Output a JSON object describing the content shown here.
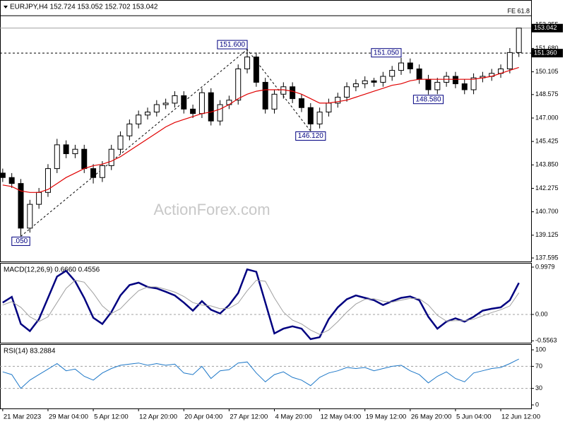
{
  "chart_data": [
    {
      "type": "candlestick",
      "title": "EURJPY,H4  152.724 153.052 152.702 153.042",
      "watermark": "ActionForex.com",
      "xlim": [
        -0.3,
        58.35
      ],
      "ylim": [
        137.36,
        154.93
      ],
      "yticks": [
        153.255,
        {
          "value": 151.68,
          "label": "151.680"
        },
        150.105,
        148.575,
        {
          "value": 147,
          "label": "147.000"
        },
        145.425,
        {
          "value": 143.85,
          "label": "143.850"
        },
        142.275,
        {
          "value": 140.7,
          "label": "140.700"
        },
        139.125,
        137.595
      ],
      "candle_color": "#000000",
      "open": [
        143.3,
        143.0,
        142.6,
        139.6,
        141.2,
        142.0,
        143.6,
        145.2,
        144.6,
        144.9,
        143.6,
        143.0,
        143.8,
        144.9,
        145.8,
        146.6,
        147.2,
        147.4,
        147.9,
        148.0,
        148.5,
        147.6,
        147.3,
        148.7,
        146.8,
        147.9,
        148.2,
        150.3,
        151.1,
        149.4,
        147.6,
        148.6,
        149.1,
        148.3,
        147.7,
        146.6,
        147.4,
        148.0,
        148.4,
        149.1,
        149.3,
        149.5,
        149.4,
        149.8,
        150.2,
        150.7,
        150.3,
        149.6,
        148.9,
        149.4,
        149.8,
        149.3,
        148.9,
        149.7,
        149.8,
        150.0,
        150.3,
        151.4
      ],
      "high": [
        143.6,
        143.3,
        142.9,
        141.5,
        142.3,
        143.9,
        145.6,
        145.5,
        145.2,
        145.2,
        143.9,
        144.1,
        145.2,
        146.1,
        146.9,
        147.5,
        147.7,
        148.2,
        148.3,
        148.8,
        148.8,
        147.9,
        149.0,
        149.0,
        148.2,
        148.5,
        150.6,
        151.6,
        151.4,
        149.7,
        148.9,
        149.4,
        149.4,
        148.6,
        148.0,
        147.7,
        148.3,
        148.7,
        149.4,
        149.6,
        149.8,
        149.7,
        150.1,
        150.5,
        151.05,
        151.0,
        150.6,
        149.9,
        149.7,
        150.1,
        150.1,
        149.6,
        150.0,
        150.1,
        150.3,
        150.6,
        151.7,
        153.05
      ],
      "low": [
        142.7,
        142.3,
        139.05,
        139.3,
        140.9,
        141.7,
        143.3,
        144.3,
        144.3,
        143.3,
        142.6,
        142.7,
        143.5,
        144.6,
        145.5,
        146.3,
        146.9,
        147.1,
        147.6,
        147.7,
        147.3,
        147.0,
        147.0,
        146.5,
        146.5,
        147.6,
        147.9,
        150.0,
        149.1,
        147.3,
        147.3,
        148.3,
        148.0,
        147.4,
        146.12,
        146.3,
        147.1,
        147.7,
        148.1,
        148.8,
        149.0,
        149.1,
        149.1,
        149.5,
        149.9,
        150.0,
        149.3,
        148.58,
        148.6,
        149.1,
        149.0,
        148.6,
        148.6,
        149.4,
        149.5,
        149.7,
        150.0,
        151.1
      ],
      "close": [
        143.0,
        142.6,
        139.6,
        141.2,
        142.0,
        143.6,
        145.2,
        144.6,
        144.9,
        143.6,
        143.0,
        143.8,
        144.9,
        145.8,
        146.6,
        147.2,
        147.4,
        147.9,
        148.0,
        148.5,
        147.6,
        147.3,
        148.7,
        146.8,
        147.9,
        148.2,
        150.3,
        151.1,
        149.4,
        147.6,
        148.6,
        149.1,
        148.3,
        147.7,
        146.6,
        147.4,
        148.0,
        148.4,
        149.1,
        149.3,
        149.5,
        149.4,
        149.8,
        150.2,
        150.7,
        150.3,
        149.6,
        148.9,
        149.4,
        149.8,
        149.3,
        148.9,
        149.7,
        149.8,
        150.0,
        150.3,
        151.4,
        153.04
      ],
      "ma": {
        "color": "#e00000",
        "values": [
          142.5,
          142.4,
          142.1,
          142.0,
          142.0,
          142.2,
          142.6,
          143.0,
          143.3,
          143.6,
          143.8,
          143.9,
          144.1,
          144.4,
          144.8,
          145.2,
          145.6,
          146.0,
          146.4,
          146.7,
          146.9,
          147.1,
          147.3,
          147.4,
          147.6,
          147.9,
          148.3,
          148.6,
          148.8,
          148.9,
          148.9,
          148.9,
          148.8,
          148.6,
          148.3,
          148.0,
          148.0,
          148.1,
          148.2,
          148.4,
          148.6,
          148.8,
          149.0,
          149.2,
          149.3,
          149.5,
          149.6,
          149.6,
          149.6,
          149.6,
          149.6,
          149.6,
          149.6,
          149.7,
          149.8,
          150.0,
          150.2,
          150.4
        ]
      },
      "annotations": [
        {
          "index": 2,
          "value": 139.05,
          "label": ".050"
        },
        {
          "index": 27,
          "value": 151.6,
          "label": "151.600"
        },
        {
          "index": 34,
          "value": 146.12,
          "label": "146.120"
        },
        {
          "index": 44,
          "value": 151.05,
          "label": "151.050"
        },
        {
          "index": 47,
          "value": 148.58,
          "label": "148.580"
        }
      ],
      "hlines": [
        {
          "value": 153.876,
          "label": "FE 61.8",
          "color": "#000000",
          "style": "solid",
          "tag": false
        },
        {
          "value": 153.042,
          "label": "153.042",
          "color": "#a0a0a0",
          "style": "solid",
          "tag": true
        },
        {
          "value": 151.36,
          "label": "151.360",
          "color": "#000000",
          "style": "dashed",
          "tag": true
        }
      ]
    },
    {
      "type": "line",
      "title": "MACD(12,26,9) 0.6660 0.4556",
      "xlim": [
        -0.3,
        58.35
      ],
      "ylim": [
        -0.596,
        1.087
      ],
      "yticks": [
        0.9979,
        {
          "value": 0,
          "label": "0.00"
        },
        -0.5563
      ],
      "dashed_levels": [
        0
      ],
      "series": [
        {
          "color": "#000080",
          "width": 2.5,
          "values": [
            0.25,
            0.37,
            -0.2,
            -0.35,
            -0.1,
            0.35,
            0.8,
            0.92,
            0.7,
            0.35,
            -0.07,
            -0.2,
            0.05,
            0.4,
            0.62,
            0.67,
            0.58,
            0.55,
            0.48,
            0.4,
            0.25,
            0.08,
            0.28,
            0.1,
            0.02,
            0.2,
            0.45,
            0.95,
            0.9,
            0.25,
            -0.4,
            -0.3,
            -0.25,
            -0.3,
            -0.52,
            -0.48,
            -0.1,
            0.15,
            0.32,
            0.4,
            0.35,
            0.3,
            0.2,
            0.28,
            0.35,
            0.38,
            0.3,
            -0.05,
            -0.3,
            -0.15,
            -0.08,
            -0.15,
            -0.05,
            0.08,
            0.12,
            0.15,
            0.3,
            0.666
          ]
        },
        {
          "color": "#a0a0a0",
          "width": 1,
          "values": [
            0.2,
            0.27,
            0.15,
            -0.05,
            -0.15,
            -0.05,
            0.25,
            0.55,
            0.72,
            0.68,
            0.45,
            0.18,
            0.02,
            0.12,
            0.32,
            0.5,
            0.58,
            0.58,
            0.53,
            0.47,
            0.38,
            0.25,
            0.2,
            0.18,
            0.12,
            0.13,
            0.24,
            0.5,
            0.72,
            0.7,
            0.35,
            0.05,
            -0.12,
            -0.2,
            -0.33,
            -0.42,
            -0.33,
            -0.15,
            0.05,
            0.22,
            0.32,
            0.33,
            0.28,
            0.26,
            0.3,
            0.34,
            0.33,
            0.2,
            -0.02,
            -0.14,
            -0.13,
            -0.13,
            -0.1,
            -0.03,
            0.04,
            0.1,
            0.18,
            0.4556
          ]
        }
      ]
    },
    {
      "type": "line",
      "title": "RSI(14) 83.2884",
      "xlim": [
        -0.3,
        58.35
      ],
      "ylim": [
        -6.4,
        110.3
      ],
      "yticks": [
        100,
        70,
        30,
        0
      ],
      "dashed_levels": [
        70,
        30
      ],
      "xticks": [
        {
          "value": 0,
          "label": "21 Mar 2023"
        },
        {
          "value": 5,
          "label": "29 Mar 04:00"
        },
        {
          "value": 10,
          "label": "5 Apr 12:00"
        },
        {
          "value": 15,
          "label": "12 Apr 20:00"
        },
        {
          "value": 20,
          "label": "20 Apr 04:00"
        },
        {
          "value": 25,
          "label": "27 Apr 12:00"
        },
        {
          "value": 30,
          "label": "4 May 20:00"
        },
        {
          "value": 35,
          "label": "12 May 04:00"
        },
        {
          "value": 40,
          "label": "19 May 12:00"
        },
        {
          "value": 45,
          "label": "26 May 20:00"
        },
        {
          "value": 50,
          "label": "5 Jun 04:00"
        },
        {
          "value": 55,
          "label": "12 Jun 12:00"
        }
      ],
      "series": [
        {
          "color": "#1e78c8",
          "width": 1,
          "values": [
            60,
            55,
            30,
            45,
            55,
            65,
            75,
            62,
            65,
            52,
            45,
            58,
            66,
            72,
            74,
            76,
            72,
            75,
            72,
            74,
            58,
            55,
            70,
            48,
            62,
            64,
            76,
            78,
            58,
            42,
            55,
            60,
            50,
            45,
            35,
            50,
            58,
            62,
            68,
            66,
            68,
            62,
            66,
            70,
            72,
            62,
            55,
            40,
            52,
            60,
            48,
            42,
            58,
            62,
            66,
            68,
            75,
            83.2884
          ]
        }
      ]
    }
  ]
}
